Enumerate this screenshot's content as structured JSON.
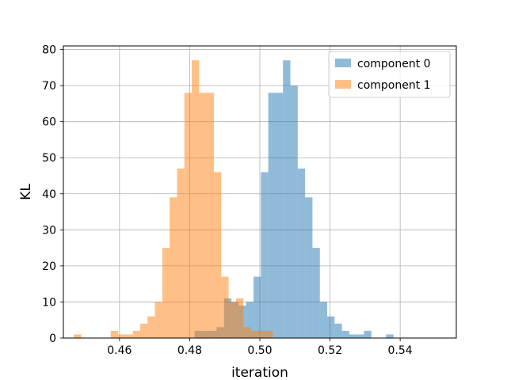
{
  "chart_data": {
    "type": "bar",
    "xlabel": "iteration",
    "ylabel": "KL",
    "xlim": [
      0.444,
      0.556
    ],
    "ylim": [
      0,
      81
    ],
    "grid": true,
    "legend_position": "top-right",
    "x_ticks": [
      "0.46",
      "0.48",
      "0.50",
      "0.52",
      "0.54"
    ],
    "y_ticks": [
      "0",
      "10",
      "20",
      "30",
      "40",
      "50",
      "60",
      "70",
      "80"
    ],
    "bin_width": 0.0021,
    "colors": {
      "component 0": "#1f77b4",
      "component 1": "#ff7f0e"
    },
    "opacity": 0.5,
    "series": [
      {
        "name": "component 0",
        "bins": [
          [
            0.4814,
            2
          ],
          [
            0.4835,
            2
          ],
          [
            0.4856,
            2
          ],
          [
            0.4877,
            3
          ],
          [
            0.4898,
            11
          ],
          [
            0.4919,
            10
          ],
          [
            0.494,
            9
          ],
          [
            0.4961,
            10
          ],
          [
            0.4982,
            17
          ],
          [
            0.5003,
            46
          ],
          [
            0.5024,
            68
          ],
          [
            0.5045,
            68
          ],
          [
            0.5066,
            77
          ],
          [
            0.5087,
            70
          ],
          [
            0.5108,
            47
          ],
          [
            0.5129,
            39
          ],
          [
            0.515,
            25
          ],
          [
            0.5171,
            10
          ],
          [
            0.5192,
            6
          ],
          [
            0.5213,
            4
          ],
          [
            0.5234,
            2
          ],
          [
            0.5255,
            1
          ],
          [
            0.5276,
            1
          ],
          [
            0.5297,
            2
          ],
          [
            0.536,
            1
          ]
        ]
      },
      {
        "name": "component 1",
        "bins": [
          [
            0.447,
            1
          ],
          [
            0.4575,
            2
          ],
          [
            0.4596,
            1
          ],
          [
            0.4617,
            1
          ],
          [
            0.4638,
            2
          ],
          [
            0.4659,
            4
          ],
          [
            0.468,
            6
          ],
          [
            0.4701,
            10
          ],
          [
            0.4722,
            25
          ],
          [
            0.4743,
            39
          ],
          [
            0.4764,
            47
          ],
          [
            0.4785,
            68
          ],
          [
            0.4806,
            77
          ],
          [
            0.4827,
            68
          ],
          [
            0.4848,
            68
          ],
          [
            0.4869,
            46
          ],
          [
            0.489,
            17
          ],
          [
            0.4911,
            10
          ],
          [
            0.4932,
            11
          ],
          [
            0.4953,
            3
          ],
          [
            0.4974,
            2
          ],
          [
            0.4995,
            2
          ],
          [
            0.5016,
            2
          ]
        ]
      }
    ]
  }
}
